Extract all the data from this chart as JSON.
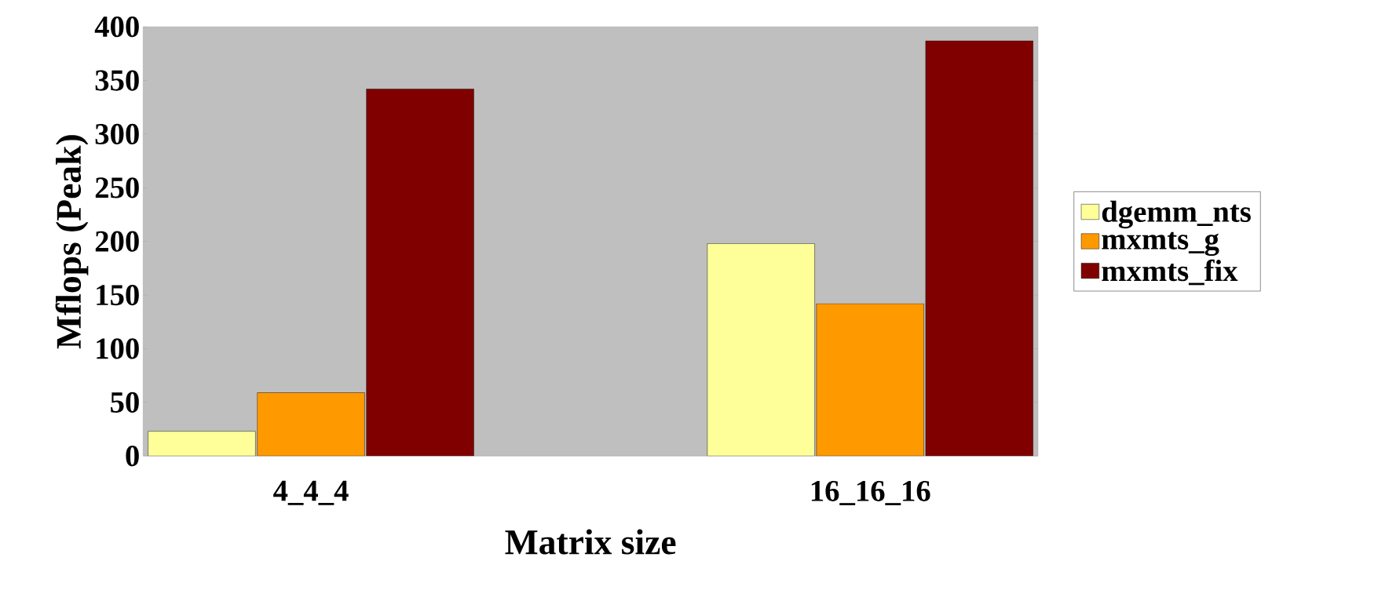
{
  "chart_data": {
    "type": "bar",
    "xlabel": "Matrix size",
    "ylabel": "Mflops (Peak)",
    "categories": [
      "4_4_4",
      "16_16_16"
    ],
    "series": [
      {
        "name": "dgemm_nts",
        "color": "#ffff99",
        "values": [
          23,
          198
        ]
      },
      {
        "name": "mxmts_g",
        "color": "#ff9900",
        "values": [
          59,
          142
        ]
      },
      {
        "name": "mxmts_fix",
        "color": "#800000",
        "values": [
          342,
          387
        ]
      }
    ],
    "ylim": [
      0,
      400
    ],
    "yticks": [
      0,
      50,
      100,
      150,
      200,
      250,
      300,
      350,
      400
    ],
    "grid": false,
    "legend": "right"
  }
}
